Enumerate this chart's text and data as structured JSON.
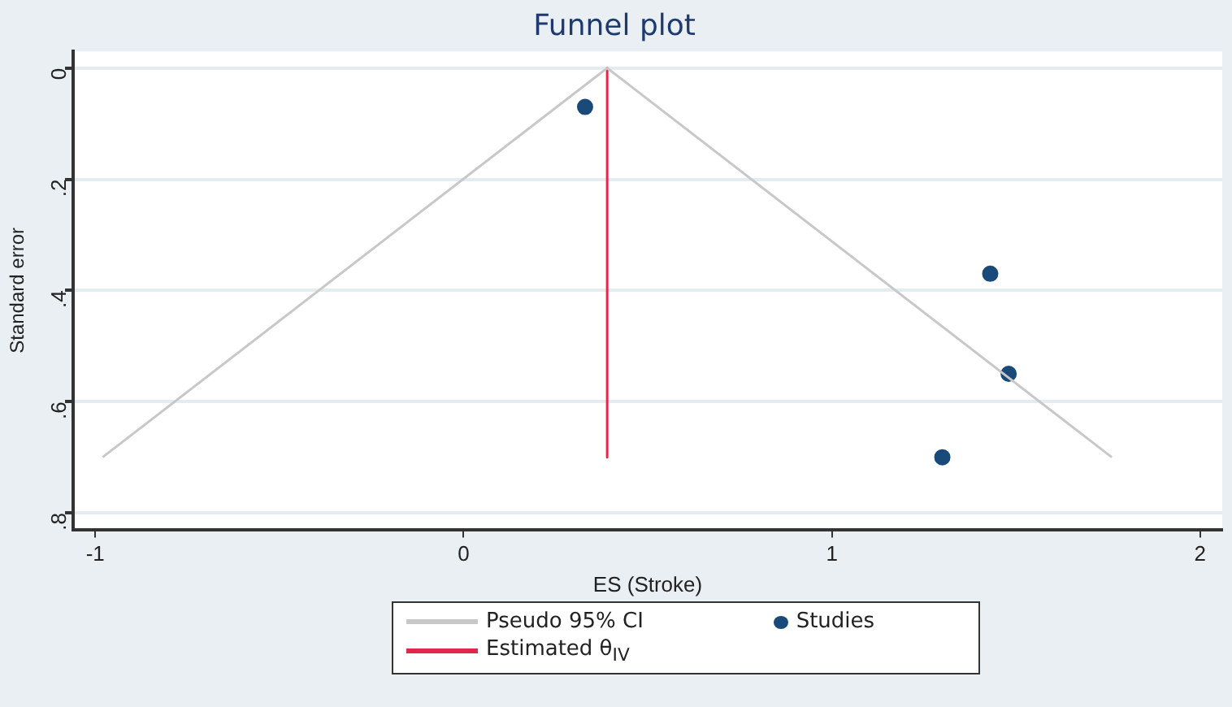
{
  "chart_data": {
    "type": "scatter",
    "title": "Funnel plot",
    "xlabel": "ES (Stroke)",
    "ylabel": "Standard error",
    "xlim": [
      -1.06,
      2.06
    ],
    "xticks": [
      -1,
      0,
      1,
      2
    ],
    "ylim": [
      0.83,
      -0.03
    ],
    "yticks": [
      0,
      {
        "value": 0.2,
        "label": ".2"
      },
      {
        "value": 0.4,
        "label": ".4"
      },
      {
        "value": 0.6,
        "label": ".6"
      },
      {
        "value": 0.8,
        "label": ".8"
      }
    ],
    "grid": "y",
    "legend": "bottom",
    "series": [
      {
        "name": "Pseudo 95% CI",
        "type": "line",
        "color": "#c8c8c8",
        "marker": "none",
        "x": [
          -0.98,
          0.39,
          1.76
        ],
        "values": [
          0.7,
          0,
          0.7
        ]
      },
      {
        "name": "Studies",
        "type": "scatter",
        "color": "#1a4a7a",
        "marker": "circle",
        "x": [
          0.33,
          1.43,
          1.48,
          1.3
        ],
        "values": [
          0.07,
          0.37,
          0.55,
          0.7
        ]
      },
      {
        "name": "Estimated θ$_{IV}$",
        "type": "line",
        "color": "#e0284a",
        "marker": "none",
        "x": [
          0.39,
          0.39
        ],
        "values": [
          0,
          0.7
        ]
      }
    ]
  }
}
